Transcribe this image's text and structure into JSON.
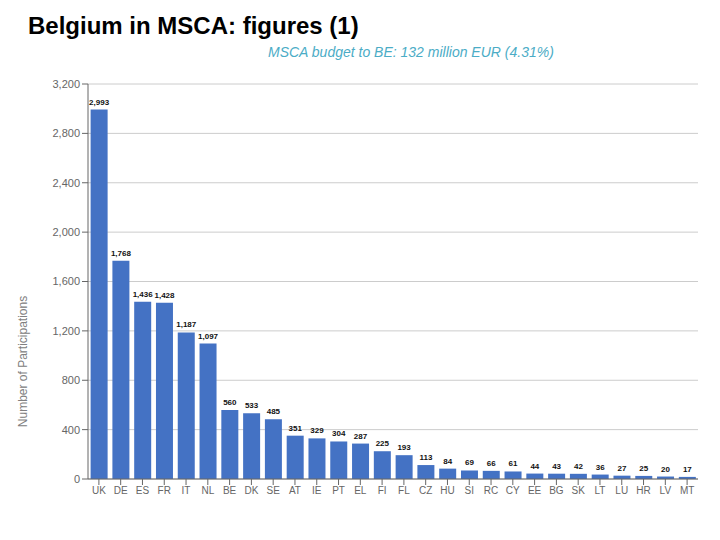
{
  "chart_data": {
    "type": "bar",
    "title": "Belgium in MSCA: figures (1)",
    "y_label": "Number of Participations",
    "annotations": [
      {
        "text": "MSCA budget to BE:  132 million EUR  (4.31%)",
        "color": "#4BACC6"
      }
    ],
    "categories": [
      "UK",
      "DE",
      "ES",
      "FR",
      "IT",
      "NL",
      "BE",
      "DK",
      "SE",
      "AT",
      "IE",
      "PT",
      "EL",
      "FI",
      "FL",
      "CZ",
      "HU",
      "SI",
      "RC",
      "CY",
      "EE",
      "BG",
      "SK",
      "LT",
      "LU",
      "HR",
      "LV",
      "MT"
    ],
    "values": [
      2993,
      1768,
      1436,
      1428,
      1187,
      1097,
      560,
      533,
      485,
      351,
      329,
      304,
      287,
      225,
      193,
      113,
      84,
      69,
      66,
      61,
      44,
      43,
      42,
      36,
      27,
      25,
      20,
      17
    ],
    "value_labels": [
      "2,993",
      "1,768",
      "1,436",
      "1,428",
      "1,187",
      "1,097",
      "560",
      "533",
      "485",
      "351",
      "329",
      "304",
      "287",
      "225",
      "193",
      "113",
      "84",
      "69",
      "66",
      "61",
      "44",
      "43",
      "42",
      "36",
      "27",
      "25",
      "20",
      "17"
    ],
    "data_labels": true,
    "color": "#4472C4",
    "ylim": [
      0,
      3200
    ],
    "yticks": [
      0,
      400,
      800,
      {
        "value": 1200,
        "label": "1,200"
      },
      {
        "value": 1600,
        "label": "1,600"
      },
      {
        "value": 2000,
        "label": "2,000"
      },
      {
        "value": 2400,
        "label": "2,400"
      },
      {
        "value": 2800,
        "label": "2,800"
      },
      {
        "value": 3200,
        "label": "3,200"
      }
    ],
    "grid": true
  }
}
